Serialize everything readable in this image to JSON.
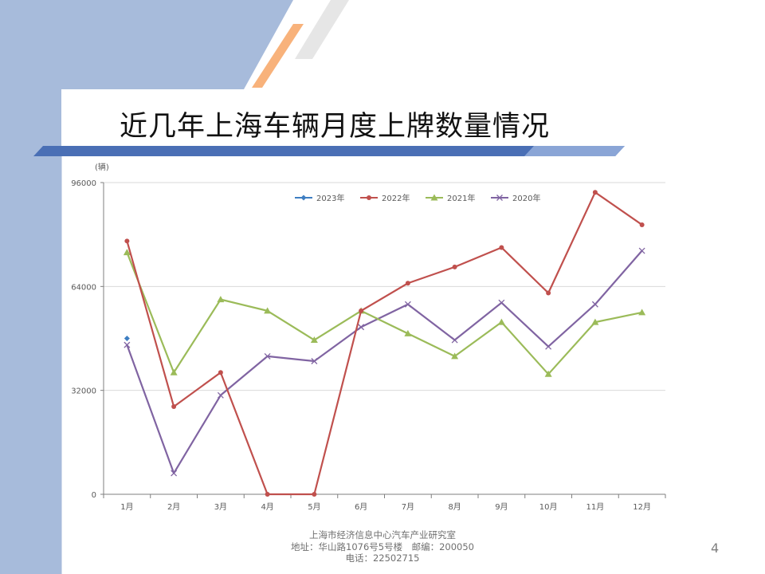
{
  "slide": {
    "title": "近几年上海车辆月度上牌数量情况",
    "page_number": "4"
  },
  "footer": {
    "line1": "上海市经济信息中心汽车产业研究室",
    "line2": "地址：华山路1076号5号楼　邮编：200050",
    "line3": "电话：22502715"
  },
  "colors": {
    "side_band": "#a7bbdb",
    "header_band": "#4a6fb5",
    "accent_orange": "#f8b27b",
    "accent_gray": "#e6e6e6"
  },
  "chart_data": {
    "type": "line",
    "unit_label": "(辆)",
    "categories": [
      "1月",
      "2月",
      "3月",
      "4月",
      "5月",
      "6月",
      "7月",
      "8月",
      "9月",
      "10月",
      "11月",
      "12月"
    ],
    "ylim": [
      0,
      96000
    ],
    "yticks": [
      0,
      32000,
      64000,
      96000
    ],
    "ytick_labels": [
      "0",
      "32000",
      "64000",
      "96000"
    ],
    "grid": true,
    "legend_position": "top",
    "series": [
      {
        "name": "2023年",
        "color": "#3e7ec2",
        "marker": "diamond",
        "values": [
          48000,
          null,
          null,
          null,
          null,
          null,
          null,
          null,
          null,
          null,
          null,
          null
        ]
      },
      {
        "name": "2022年",
        "color": "#c0504d",
        "marker": "circle",
        "values": [
          78000,
          27000,
          37500,
          0,
          0,
          56500,
          65000,
          70000,
          76000,
          62000,
          93000,
          83000
        ]
      },
      {
        "name": "2021年",
        "color": "#9bbb59",
        "marker": "triangle",
        "values": [
          74500,
          37500,
          60000,
          56500,
          47500,
          56500,
          49500,
          42500,
          53000,
          37000,
          53000,
          56000
        ]
      },
      {
        "name": "2020年",
        "color": "#8064a2",
        "marker": "x",
        "values": [
          46000,
          6500,
          30500,
          42500,
          41000,
          51500,
          58500,
          47500,
          59000,
          45500,
          58500,
          75000
        ]
      }
    ]
  }
}
